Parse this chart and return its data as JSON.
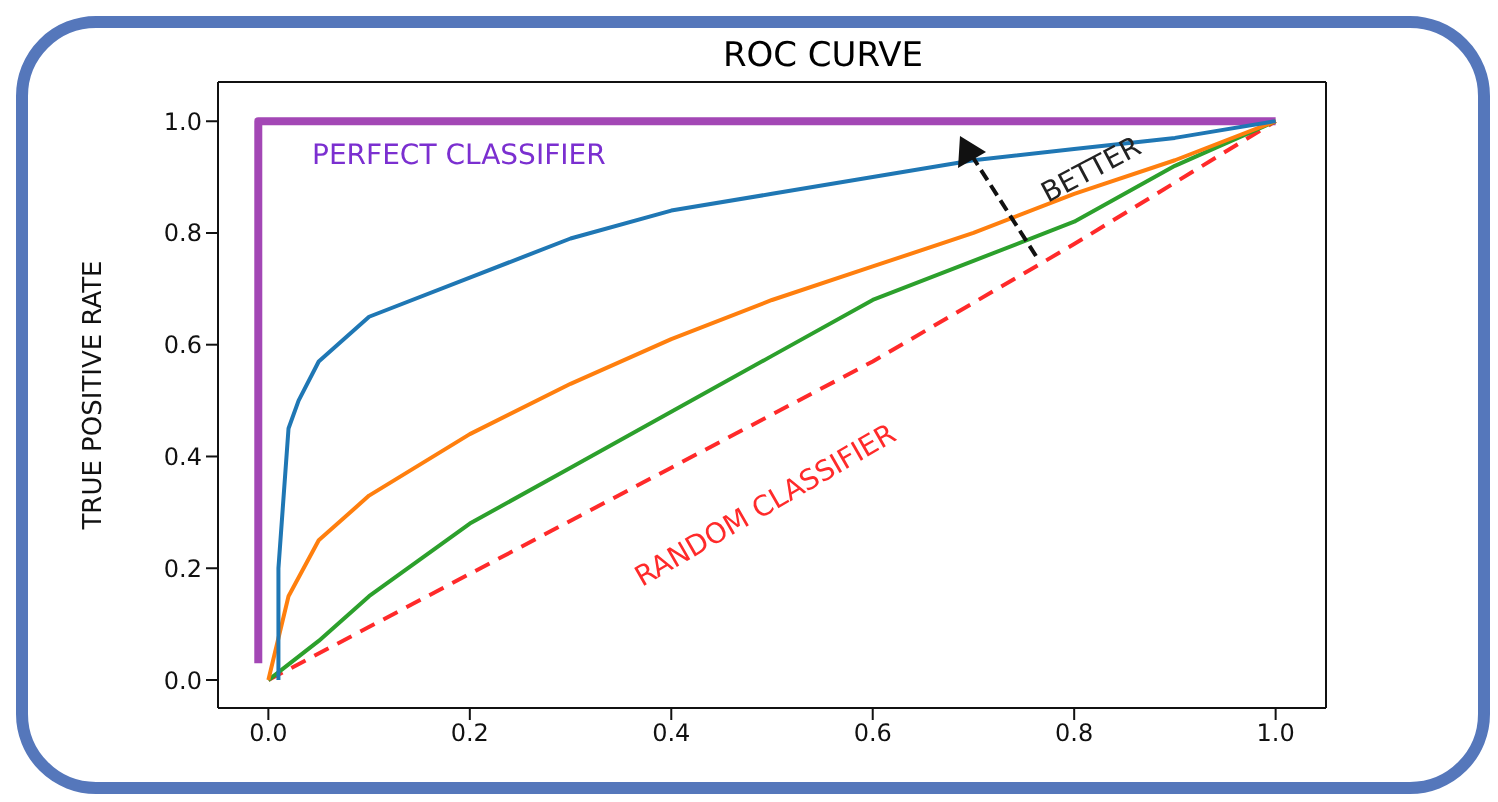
{
  "chart_data": {
    "type": "line",
    "title": "ROC CURVE",
    "ylabel": "TRUE POSITIVE RATE",
    "xlim": [
      -0.05,
      1.05
    ],
    "ylim": [
      -0.05,
      1.07
    ],
    "xticks": [
      {
        "value": 0,
        "label": "0.0"
      },
      {
        "value": 0.2,
        "label": "0.2"
      },
      {
        "value": 0.4,
        "label": "0.4"
      },
      {
        "value": 0.6,
        "label": "0.6"
      },
      {
        "value": 0.8,
        "label": "0.8"
      },
      {
        "value": 1,
        "label": "1.0"
      }
    ],
    "yticks": [
      {
        "value": 0,
        "label": "0.0"
      },
      {
        "value": 0.2,
        "label": "0.2"
      },
      {
        "value": 0.4,
        "label": "0.4"
      },
      {
        "value": 0.6,
        "label": "0.6"
      },
      {
        "value": 0.8,
        "label": "0.8"
      },
      {
        "value": 1,
        "label": "1.0"
      }
    ],
    "grid": false,
    "marker": "none",
    "series": [
      {
        "color": "#a347b5",
        "x": [
          -0.01,
          -0.01,
          1
        ],
        "values": [
          0.03,
          1,
          1
        ]
      },
      {
        "color": "#ff2a2a",
        "line_style": "dashed",
        "x": [
          0,
          0.2,
          0.4,
          0.6,
          0.8,
          1
        ],
        "values": [
          0,
          0.19,
          0.38,
          0.57,
          0.78,
          1
        ]
      },
      {
        "color": "#2ca02c",
        "x": [
          0,
          0.05,
          0.1,
          0.2,
          0.3,
          0.4,
          0.5,
          0.6,
          0.7,
          0.8,
          0.9,
          1
        ],
        "values": [
          0,
          0.07,
          0.15,
          0.28,
          0.38,
          0.48,
          0.58,
          0.68,
          0.75,
          0.82,
          0.92,
          1
        ]
      },
      {
        "color": "#ff7f0e",
        "x": [
          0,
          0.02,
          0.05,
          0.1,
          0.2,
          0.3,
          0.4,
          0.5,
          0.6,
          0.7,
          0.8,
          0.9,
          1
        ],
        "values": [
          0,
          0.15,
          0.25,
          0.33,
          0.44,
          0.53,
          0.61,
          0.68,
          0.74,
          0.8,
          0.87,
          0.93,
          1
        ]
      },
      {
        "color": "#1f77b4",
        "x": [
          0.01,
          0.01,
          0.02,
          0.03,
          0.05,
          0.1,
          0.2,
          0.3,
          0.4,
          0.5,
          0.6,
          0.7,
          0.8,
          0.9,
          1
        ],
        "values": [
          0,
          0.2,
          0.45,
          0.5,
          0.57,
          0.65,
          0.72,
          0.79,
          0.84,
          0.87,
          0.9,
          0.93,
          0.95,
          0.97,
          1
        ]
      }
    ],
    "annotations": [
      "PERFECT CLASSIFIER",
      "RANDOM CLASSIFIER",
      "BETTER"
    ]
  }
}
